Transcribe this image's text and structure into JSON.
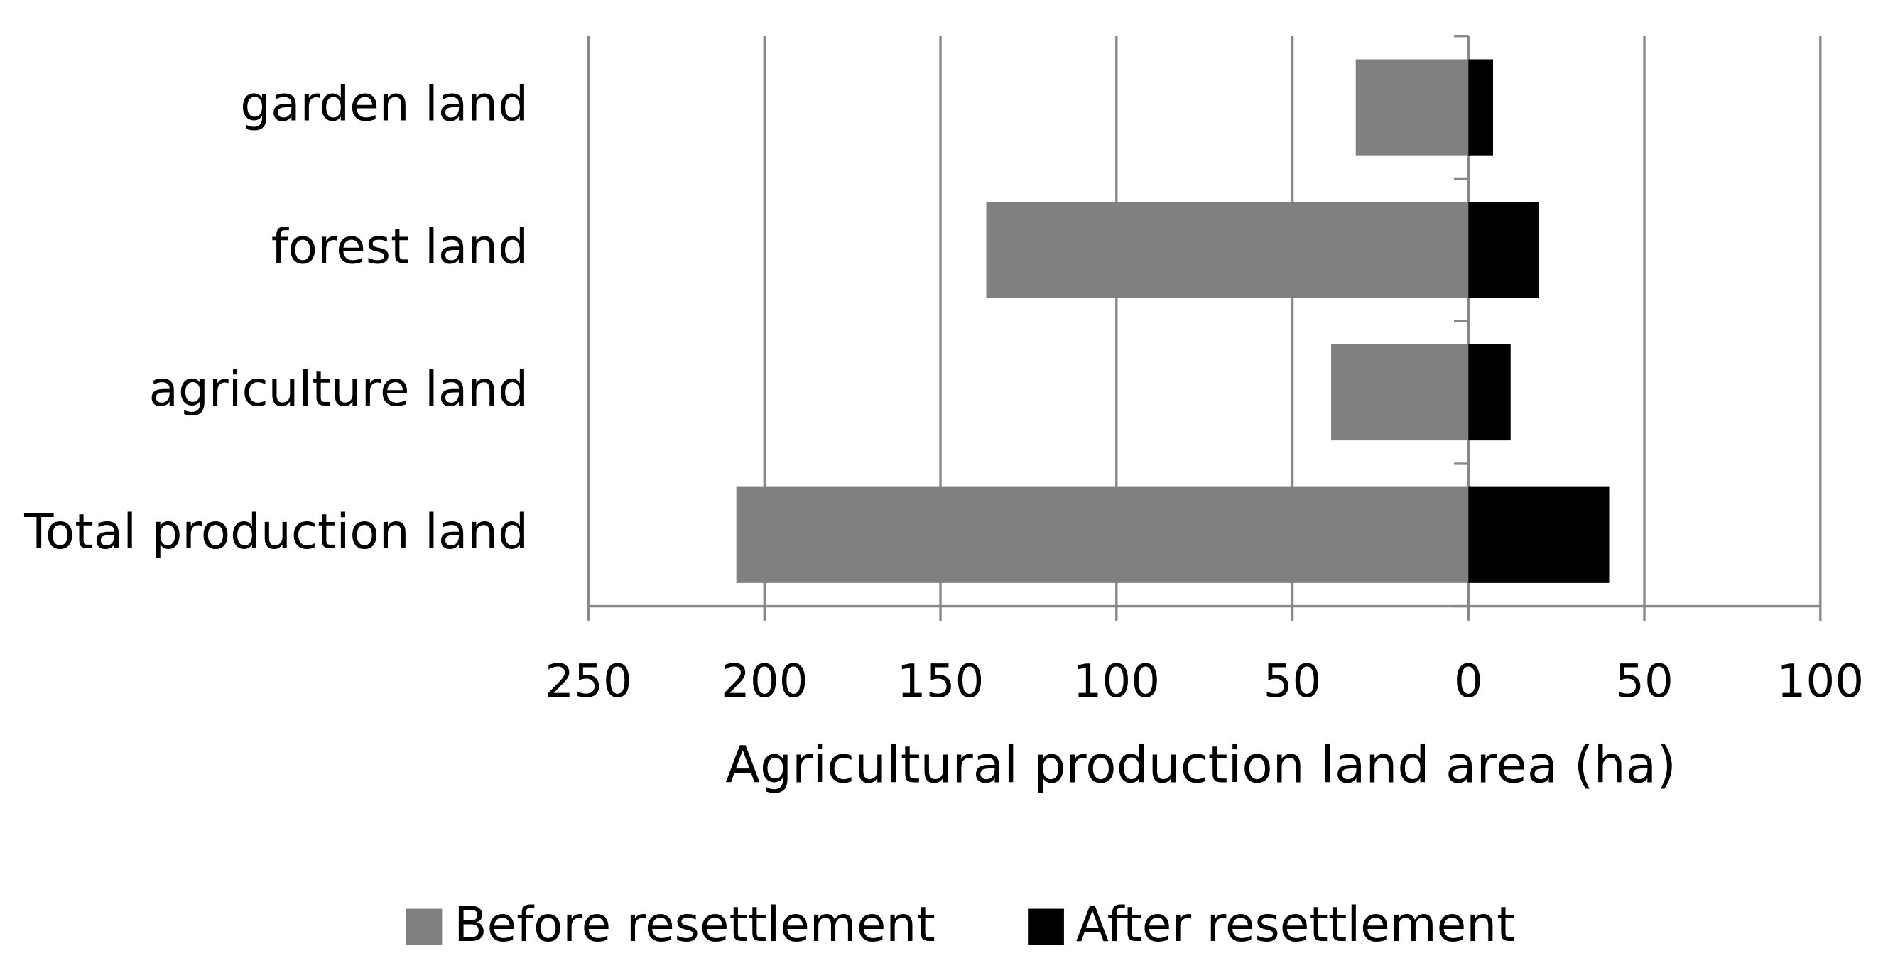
{
  "chart_data": {
    "type": "bar",
    "orientation": "horizontal",
    "categories": [
      "Total production land",
      "agriculture land",
      "forest land",
      "garden land"
    ],
    "series": [
      {
        "name": "Before resettlement",
        "color": "#808080",
        "values": [
          -208,
          -39,
          -137,
          -32
        ]
      },
      {
        "name": "After resettlement",
        "color": "#000000",
        "values": [
          40,
          12,
          20,
          7
        ]
      }
    ],
    "xlabel": "Agricultural production land area (ha)",
    "xlim": [
      -250,
      100
    ],
    "xticks": [
      {
        "value": -250,
        "label": "250"
      },
      {
        "value": -200,
        "label": "200"
      },
      {
        "value": -150,
        "label": "150"
      },
      {
        "value": -100,
        "label": "100"
      },
      {
        "value": -50,
        "label": "50"
      },
      0,
      50,
      100
    ],
    "grid": true,
    "legend": "bottom"
  }
}
